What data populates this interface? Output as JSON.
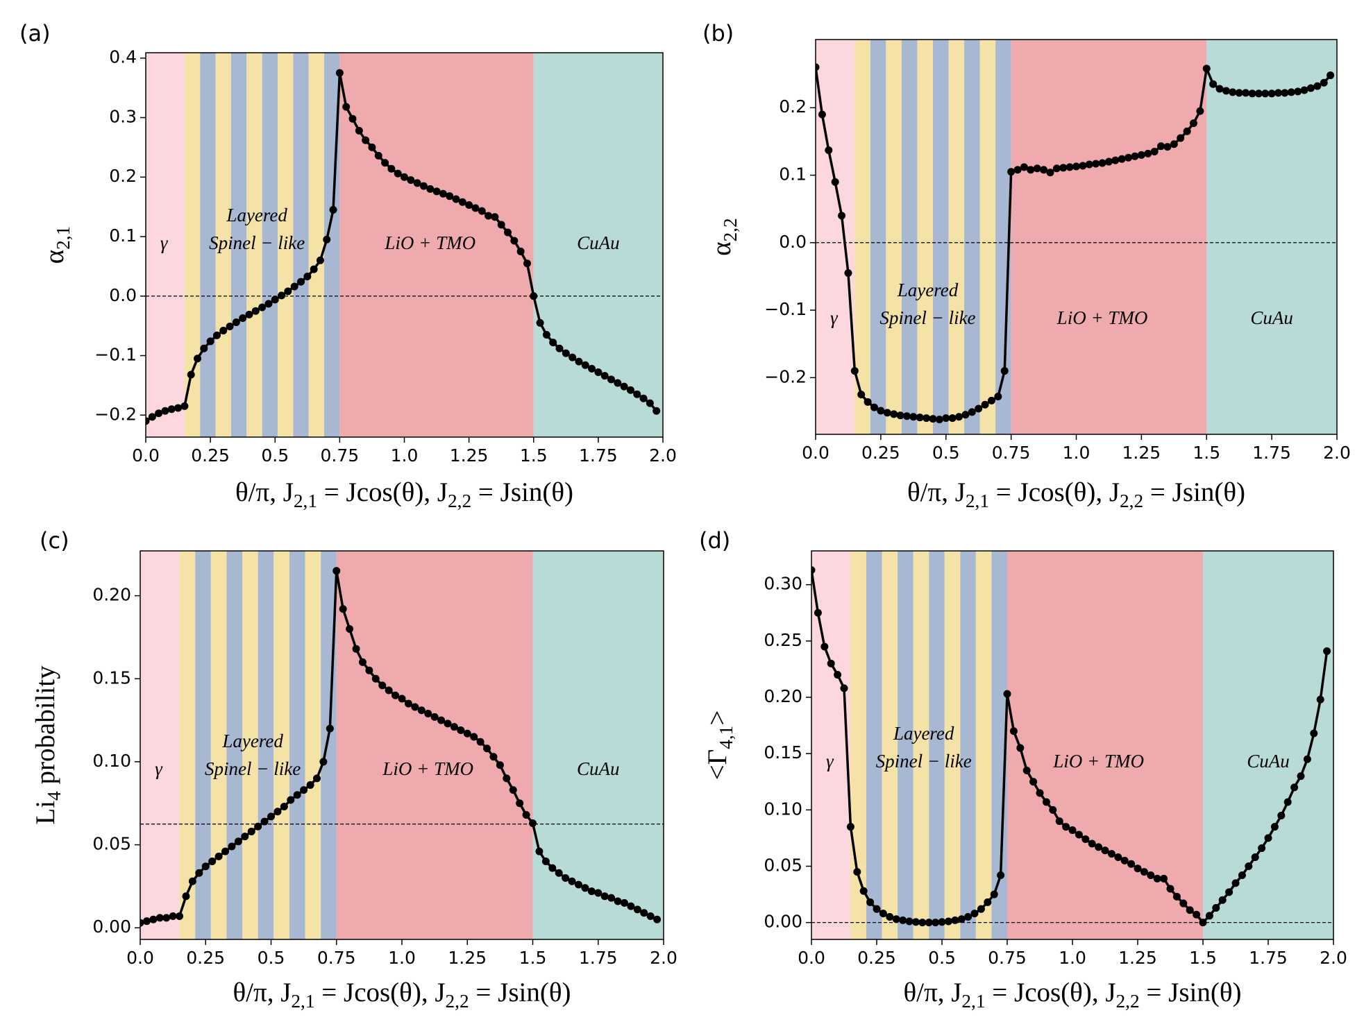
{
  "chart_data": [
    {
      "type": "line",
      "panel": "(a)",
      "ylabel_parts": [
        "α",
        "2,1"
      ],
      "xlabel_parts": [
        "θ/π,  J",
        "2,1",
        " = Jcos(θ),  J",
        "2,2",
        " = Jsin(θ)"
      ],
      "color": "#000000",
      "hline": 0,
      "annotations": [
        "γ",
        "Layered",
        "Spinel − like",
        "LiO + TMO",
        "CuAu"
      ],
      "regions": [
        {
          "start": 0,
          "end": 0.15,
          "color": "#fcd8de"
        },
        {
          "start": 0.15,
          "end": 0.21,
          "color": "#f5e2a6"
        },
        {
          "start": 0.21,
          "end": 0.27,
          "color": "#a8b8d2"
        },
        {
          "start": 0.27,
          "end": 0.33,
          "color": "#f5e2a6"
        },
        {
          "start": 0.33,
          "end": 0.39,
          "color": "#a8b8d2"
        },
        {
          "start": 0.39,
          "end": 0.45,
          "color": "#f5e2a6"
        },
        {
          "start": 0.45,
          "end": 0.51,
          "color": "#a8b8d2"
        },
        {
          "start": 0.51,
          "end": 0.57,
          "color": "#f5e2a6"
        },
        {
          "start": 0.57,
          "end": 0.63,
          "color": "#a8b8d2"
        },
        {
          "start": 0.63,
          "end": 0.69,
          "color": "#f5e2a6"
        },
        {
          "start": 0.69,
          "end": 0.75,
          "color": "#a8b8d2"
        },
        {
          "start": 0.75,
          "end": 1.5,
          "color": "#eeaaad"
        },
        {
          "start": 1.5,
          "end": 2,
          "color": "#b9dbd7"
        }
      ],
      "x": [
        0,
        0.025,
        0.05,
        0.075,
        0.1,
        0.125,
        0.15,
        0.175,
        0.2,
        0.225,
        0.25,
        0.275,
        0.3,
        0.325,
        0.35,
        0.375,
        0.4,
        0.425,
        0.45,
        0.475,
        0.5,
        0.525,
        0.55,
        0.575,
        0.6,
        0.625,
        0.65,
        0.675,
        0.7,
        0.725,
        0.75,
        0.775,
        0.8,
        0.825,
        0.85,
        0.875,
        0.9,
        0.925,
        0.95,
        0.975,
        1,
        1.025,
        1.05,
        1.075,
        1.1,
        1.125,
        1.15,
        1.175,
        1.2,
        1.225,
        1.25,
        1.275,
        1.3,
        1.325,
        1.35,
        1.375,
        1.4,
        1.425,
        1.45,
        1.475,
        1.5,
        1.525,
        1.55,
        1.575,
        1.6,
        1.625,
        1.65,
        1.675,
        1.7,
        1.725,
        1.75,
        1.775,
        1.8,
        1.825,
        1.85,
        1.875,
        1.9,
        1.925,
        1.95,
        1.975
      ],
      "values": [
        -0.21,
        -0.203,
        -0.197,
        -0.193,
        -0.19,
        -0.188,
        -0.185,
        -0.132,
        -0.105,
        -0.088,
        -0.076,
        -0.066,
        -0.058,
        -0.051,
        -0.044,
        -0.037,
        -0.031,
        -0.025,
        -0.019,
        -0.013,
        -0.006,
        0.001,
        0.008,
        0.016,
        0.024,
        0.033,
        0.045,
        0.06,
        0.095,
        0.145,
        0.375,
        0.318,
        0.298,
        0.278,
        0.262,
        0.25,
        0.236,
        0.224,
        0.214,
        0.206,
        0.2,
        0.195,
        0.19,
        0.185,
        0.18,
        0.176,
        0.172,
        0.168,
        0.163,
        0.158,
        0.153,
        0.148,
        0.143,
        0.135,
        0.133,
        0.12,
        0.107,
        0.093,
        0.075,
        0.055,
        0,
        -0.045,
        -0.065,
        -0.078,
        -0.088,
        -0.096,
        -0.103,
        -0.11,
        -0.116,
        -0.122,
        -0.128,
        -0.134,
        -0.14,
        -0.146,
        -0.152,
        -0.158,
        -0.165,
        -0.172,
        -0.18,
        -0.193
      ],
      "xlim": [
        0,
        2
      ],
      "xticks": [
        {
          "value": 0,
          "label": "0.0"
        },
        0.25,
        0.5,
        0.75,
        {
          "value": 1,
          "label": "1.0"
        },
        1.25,
        1.5,
        1.75,
        {
          "value": 2,
          "label": "2.0"
        }
      ],
      "ylim": [
        -0.237,
        0.409
      ],
      "yticks": [
        {
          "value": -0.2,
          "label": "−0.2"
        },
        {
          "value": -0.1,
          "label": "−0.1"
        },
        {
          "value": 0,
          "label": "0.0"
        },
        0.1,
        0.2,
        0.3,
        0.4
      ]
    },
    {
      "type": "line",
      "panel": "(b)",
      "ylabel_parts": [
        "α",
        "2,2"
      ],
      "xlabel_parts": [
        "θ/π,  J",
        "2,1",
        " = Jcos(θ),  J",
        "2,2",
        " = Jsin(θ)"
      ],
      "color": "#000000",
      "hline": 0,
      "annotations": [
        "γ",
        "Layered",
        "Spinel − like",
        "LiO + TMO",
        "CuAu"
      ],
      "regions": [
        {
          "start": 0,
          "end": 0.15,
          "color": "#fcd8de"
        },
        {
          "start": 0.15,
          "end": 0.21,
          "color": "#f5e2a6"
        },
        {
          "start": 0.21,
          "end": 0.27,
          "color": "#a8b8d2"
        },
        {
          "start": 0.27,
          "end": 0.33,
          "color": "#f5e2a6"
        },
        {
          "start": 0.33,
          "end": 0.39,
          "color": "#a8b8d2"
        },
        {
          "start": 0.39,
          "end": 0.45,
          "color": "#f5e2a6"
        },
        {
          "start": 0.45,
          "end": 0.51,
          "color": "#a8b8d2"
        },
        {
          "start": 0.51,
          "end": 0.57,
          "color": "#f5e2a6"
        },
        {
          "start": 0.57,
          "end": 0.63,
          "color": "#a8b8d2"
        },
        {
          "start": 0.63,
          "end": 0.69,
          "color": "#f5e2a6"
        },
        {
          "start": 0.69,
          "end": 0.75,
          "color": "#a8b8d2"
        },
        {
          "start": 0.75,
          "end": 1.5,
          "color": "#eeaaad"
        },
        {
          "start": 1.5,
          "end": 2,
          "color": "#b9dbd7"
        }
      ],
      "x": [
        0,
        0.025,
        0.05,
        0.075,
        0.1,
        0.125,
        0.15,
        0.175,
        0.2,
        0.225,
        0.25,
        0.275,
        0.3,
        0.325,
        0.35,
        0.375,
        0.4,
        0.425,
        0.45,
        0.475,
        0.5,
        0.525,
        0.55,
        0.575,
        0.6,
        0.625,
        0.65,
        0.675,
        0.7,
        0.725,
        0.75,
        0.775,
        0.8,
        0.825,
        0.85,
        0.875,
        0.9,
        0.925,
        0.95,
        0.975,
        1,
        1.025,
        1.05,
        1.075,
        1.1,
        1.125,
        1.15,
        1.175,
        1.2,
        1.225,
        1.25,
        1.275,
        1.3,
        1.325,
        1.35,
        1.375,
        1.4,
        1.425,
        1.45,
        1.475,
        1.5,
        1.525,
        1.55,
        1.575,
        1.6,
        1.625,
        1.65,
        1.675,
        1.7,
        1.725,
        1.75,
        1.775,
        1.8,
        1.825,
        1.85,
        1.875,
        1.9,
        1.925,
        1.95,
        1.975
      ],
      "values": [
        0.26,
        0.19,
        0.137,
        0.09,
        0.04,
        -0.045,
        -0.19,
        -0.225,
        -0.236,
        -0.244,
        -0.249,
        -0.252,
        -0.254,
        -0.256,
        -0.257,
        -0.258,
        -0.259,
        -0.26,
        -0.261,
        -0.262,
        -0.26,
        -0.26,
        -0.258,
        -0.255,
        -0.251,
        -0.246,
        -0.24,
        -0.234,
        -0.228,
        -0.19,
        0.105,
        0.108,
        0.112,
        0.108,
        0.11,
        0.108,
        0.104,
        0.11,
        0.111,
        0.112,
        0.113,
        0.114,
        0.116,
        0.117,
        0.118,
        0.12,
        0.122,
        0.124,
        0.126,
        0.128,
        0.13,
        0.132,
        0.135,
        0.143,
        0.142,
        0.146,
        0.155,
        0.165,
        0.177,
        0.195,
        0.258,
        0.235,
        0.228,
        0.225,
        0.223,
        0.222,
        0.222,
        0.221,
        0.221,
        0.221,
        0.221,
        0.222,
        0.222,
        0.223,
        0.224,
        0.226,
        0.229,
        0.232,
        0.237,
        0.248
      ],
      "xlim": [
        0,
        2
      ],
      "xticks": [
        {
          "value": 0,
          "label": "0.0"
        },
        0.25,
        0.5,
        0.75,
        {
          "value": 1,
          "label": "1.0"
        },
        1.25,
        1.5,
        1.75,
        {
          "value": 2,
          "label": "2.0"
        }
      ],
      "ylim": [
        -0.284,
        0.301
      ],
      "yticks": [
        {
          "value": -0.2,
          "label": "−0.2"
        },
        {
          "value": -0.1,
          "label": "−0.1"
        },
        {
          "value": 0,
          "label": "0.0"
        },
        0.1,
        0.2
      ]
    },
    {
      "type": "line",
      "panel": "(c)",
      "ylabel_parts": [
        "Li",
        "4",
        " probability"
      ],
      "xlabel_parts": [
        "θ/π,  J",
        "2,1",
        " = Jcos(θ),  J",
        "2,2",
        " = Jsin(θ)"
      ],
      "color": "#000000",
      "hline": 0.0625,
      "annotations": [
        "γ",
        "Layered",
        "Spinel − like",
        "LiO + TMO",
        "CuAu"
      ],
      "regions": [
        {
          "start": 0,
          "end": 0.15,
          "color": "#fcd8de"
        },
        {
          "start": 0.15,
          "end": 0.21,
          "color": "#f5e2a6"
        },
        {
          "start": 0.21,
          "end": 0.27,
          "color": "#a8b8d2"
        },
        {
          "start": 0.27,
          "end": 0.33,
          "color": "#f5e2a6"
        },
        {
          "start": 0.33,
          "end": 0.39,
          "color": "#a8b8d2"
        },
        {
          "start": 0.39,
          "end": 0.45,
          "color": "#f5e2a6"
        },
        {
          "start": 0.45,
          "end": 0.51,
          "color": "#a8b8d2"
        },
        {
          "start": 0.51,
          "end": 0.57,
          "color": "#f5e2a6"
        },
        {
          "start": 0.57,
          "end": 0.63,
          "color": "#a8b8d2"
        },
        {
          "start": 0.63,
          "end": 0.69,
          "color": "#f5e2a6"
        },
        {
          "start": 0.69,
          "end": 0.75,
          "color": "#a8b8d2"
        },
        {
          "start": 0.75,
          "end": 1.5,
          "color": "#eeaaad"
        },
        {
          "start": 1.5,
          "end": 2,
          "color": "#b9dbd7"
        }
      ],
      "x": [
        0,
        0.025,
        0.05,
        0.075,
        0.1,
        0.125,
        0.15,
        0.175,
        0.2,
        0.225,
        0.25,
        0.275,
        0.3,
        0.325,
        0.35,
        0.375,
        0.4,
        0.425,
        0.45,
        0.475,
        0.5,
        0.525,
        0.55,
        0.575,
        0.6,
        0.625,
        0.65,
        0.675,
        0.7,
        0.725,
        0.75,
        0.775,
        0.8,
        0.825,
        0.85,
        0.875,
        0.9,
        0.925,
        0.95,
        0.975,
        1,
        1.025,
        1.05,
        1.075,
        1.1,
        1.125,
        1.15,
        1.175,
        1.2,
        1.225,
        1.25,
        1.275,
        1.3,
        1.325,
        1.35,
        1.375,
        1.4,
        1.425,
        1.45,
        1.475,
        1.5,
        1.525,
        1.55,
        1.575,
        1.6,
        1.625,
        1.65,
        1.675,
        1.7,
        1.725,
        1.75,
        1.775,
        1.8,
        1.825,
        1.85,
        1.875,
        1.9,
        1.925,
        1.95,
        1.975
      ],
      "values": [
        0.003,
        0.004,
        0.005,
        0.006,
        0.006,
        0.007,
        0.007,
        0.019,
        0.028,
        0.033,
        0.037,
        0.04,
        0.043,
        0.046,
        0.049,
        0.052,
        0.055,
        0.058,
        0.061,
        0.064,
        0.067,
        0.07,
        0.073,
        0.077,
        0.08,
        0.083,
        0.086,
        0.09,
        0.1,
        0.12,
        0.215,
        0.192,
        0.18,
        0.168,
        0.16,
        0.155,
        0.15,
        0.146,
        0.143,
        0.14,
        0.138,
        0.135,
        0.133,
        0.131,
        0.129,
        0.127,
        0.125,
        0.123,
        0.121,
        0.119,
        0.117,
        0.115,
        0.112,
        0.108,
        0.103,
        0.098,
        0.09,
        0.083,
        0.075,
        0.068,
        0.063,
        0.046,
        0.04,
        0.036,
        0.033,
        0.03,
        0.028,
        0.026,
        0.024,
        0.022,
        0.021,
        0.019,
        0.018,
        0.016,
        0.015,
        0.013,
        0.011,
        0.009,
        0.007,
        0.005
      ],
      "xlim": [
        0,
        2
      ],
      "xticks": [
        {
          "value": 0,
          "label": "0.0"
        },
        0.25,
        0.5,
        0.75,
        {
          "value": 1,
          "label": "1.0"
        },
        1.25,
        1.5,
        1.75,
        {
          "value": 2,
          "label": "2.0"
        }
      ],
      "ylim": [
        -0.007,
        0.227
      ],
      "yticks": [
        {
          "value": 0,
          "label": "0.00"
        },
        0.05,
        {
          "value": 0.1,
          "label": "0.10"
        },
        0.15,
        {
          "value": 0.2,
          "label": "0.20"
        }
      ]
    },
    {
      "type": "line",
      "panel": "(d)",
      "ylabel_parts": [
        "<Γ",
        "4,1",
        ">"
      ],
      "xlabel_parts": [
        "θ/π,  J",
        "2,1",
        " = Jcos(θ),  J",
        "2,2",
        " = Jsin(θ)"
      ],
      "color": "#000000",
      "hline": 0,
      "annotations": [
        "γ",
        "Layered",
        "Spinel − like",
        "LiO + TMO",
        "CuAu"
      ],
      "regions": [
        {
          "start": 0,
          "end": 0.15,
          "color": "#fcd8de"
        },
        {
          "start": 0.15,
          "end": 0.21,
          "color": "#f5e2a6"
        },
        {
          "start": 0.21,
          "end": 0.27,
          "color": "#a8b8d2"
        },
        {
          "start": 0.27,
          "end": 0.33,
          "color": "#f5e2a6"
        },
        {
          "start": 0.33,
          "end": 0.39,
          "color": "#a8b8d2"
        },
        {
          "start": 0.39,
          "end": 0.45,
          "color": "#f5e2a6"
        },
        {
          "start": 0.45,
          "end": 0.51,
          "color": "#a8b8d2"
        },
        {
          "start": 0.51,
          "end": 0.57,
          "color": "#f5e2a6"
        },
        {
          "start": 0.57,
          "end": 0.63,
          "color": "#a8b8d2"
        },
        {
          "start": 0.63,
          "end": 0.69,
          "color": "#f5e2a6"
        },
        {
          "start": 0.69,
          "end": 0.75,
          "color": "#a8b8d2"
        },
        {
          "start": 0.75,
          "end": 1.5,
          "color": "#eeaaad"
        },
        {
          "start": 1.5,
          "end": 2,
          "color": "#b9dbd7"
        }
      ],
      "x": [
        0,
        0.025,
        0.05,
        0.075,
        0.1,
        0.125,
        0.15,
        0.175,
        0.2,
        0.225,
        0.25,
        0.275,
        0.3,
        0.325,
        0.35,
        0.375,
        0.4,
        0.425,
        0.45,
        0.475,
        0.5,
        0.525,
        0.55,
        0.575,
        0.6,
        0.625,
        0.65,
        0.675,
        0.7,
        0.725,
        0.75,
        0.775,
        0.8,
        0.825,
        0.85,
        0.875,
        0.9,
        0.925,
        0.95,
        0.975,
        1,
        1.025,
        1.05,
        1.075,
        1.1,
        1.125,
        1.15,
        1.175,
        1.2,
        1.225,
        1.25,
        1.275,
        1.3,
        1.325,
        1.35,
        1.375,
        1.4,
        1.425,
        1.45,
        1.475,
        1.5,
        1.525,
        1.55,
        1.575,
        1.6,
        1.625,
        1.65,
        1.675,
        1.7,
        1.725,
        1.75,
        1.775,
        1.8,
        1.825,
        1.85,
        1.875,
        1.9,
        1.925,
        1.95,
        1.975
      ],
      "values": [
        0.313,
        0.275,
        0.245,
        0.23,
        0.22,
        0.208,
        0.085,
        0.045,
        0.028,
        0.018,
        0.012,
        0.008,
        0.005,
        0.003,
        0.002,
        0.001,
        0.0005,
        0,
        0,
        0,
        0.0005,
        0.001,
        0.002,
        0.003,
        0.005,
        0.008,
        0.012,
        0.018,
        0.025,
        0.042,
        0.203,
        0.17,
        0.155,
        0.135,
        0.125,
        0.115,
        0.107,
        0.1,
        0.09,
        0.085,
        0.082,
        0.078,
        0.074,
        0.07,
        0.067,
        0.064,
        0.061,
        0.058,
        0.055,
        0.052,
        0.048,
        0.045,
        0.042,
        0.039,
        0.039,
        0.03,
        0.023,
        0.017,
        0.011,
        0.007,
        0,
        0.006,
        0.013,
        0.02,
        0.027,
        0.035,
        0.042,
        0.05,
        0.058,
        0.066,
        0.075,
        0.085,
        0.095,
        0.107,
        0.12,
        0.13,
        0.145,
        0.168,
        0.198,
        0.241
      ],
      "xlim": [
        0,
        2
      ],
      "xticks": [
        {
          "value": 0,
          "label": "0.0"
        },
        0.25,
        0.5,
        0.75,
        {
          "value": 1,
          "label": "1.0"
        },
        1.25,
        1.5,
        1.75,
        {
          "value": 2,
          "label": "2.0"
        }
      ],
      "ylim": [
        -0.015,
        0.33
      ],
      "yticks": [
        {
          "value": 0,
          "label": "0.00"
        },
        0.05,
        {
          "value": 0.1,
          "label": "0.10"
        },
        0.15,
        {
          "value": 0.2,
          "label": "0.20"
        },
        0.25,
        {
          "value": 0.3,
          "label": "0.30"
        }
      ]
    }
  ]
}
